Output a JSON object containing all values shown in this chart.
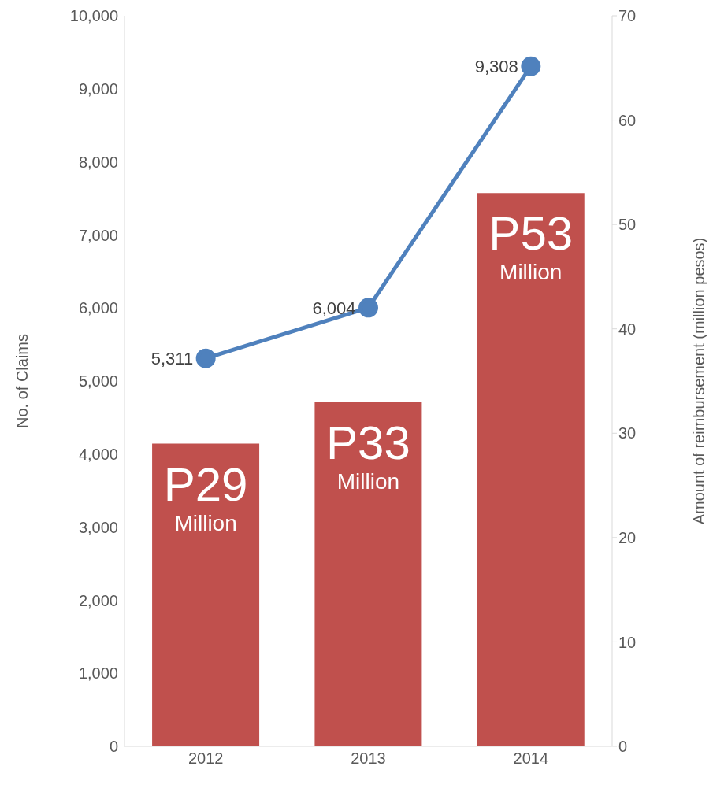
{
  "chart_data": {
    "type": "bar",
    "categories": [
      "2012",
      "2013",
      "2014"
    ],
    "ylabel": "No. of Claims",
    "y2label": "Amount of reimbursement (million pesos)",
    "ylim": [
      0,
      10000
    ],
    "yticks": [
      {
        "value": 0,
        "label": "0"
      },
      {
        "value": 1000,
        "label": "1,000"
      },
      {
        "value": 2000,
        "label": "2,000"
      },
      {
        "value": 3000,
        "label": "3,000"
      },
      {
        "value": 4000,
        "label": "4,000"
      },
      {
        "value": 5000,
        "label": "5,000"
      },
      {
        "value": 6000,
        "label": "6,000"
      },
      {
        "value": 7000,
        "label": "7,000"
      },
      {
        "value": 8000,
        "label": "8,000"
      },
      {
        "value": 9000,
        "label": "9,000"
      },
      {
        "value": 10000,
        "label": "10,000"
      }
    ],
    "y2lim": [
      0,
      70
    ],
    "y2ticks": [
      0,
      10,
      20,
      30,
      40,
      50,
      60,
      70
    ],
    "grid": false,
    "series": [
      {
        "axis": "y2",
        "color": "#c0504d",
        "values": [
          29,
          33,
          53
        ],
        "value_labels": [
          "P29 Million",
          "P33 Million",
          "P53 Million"
        ]
      },
      {
        "type": "line",
        "axis": "y",
        "color": "#4f81bd",
        "values": [
          5311,
          6004,
          9308
        ],
        "value_labels": [
          "5,311",
          "6,004",
          "9,308"
        ],
        "marker": "circle",
        "line_style": "solid"
      }
    ]
  }
}
